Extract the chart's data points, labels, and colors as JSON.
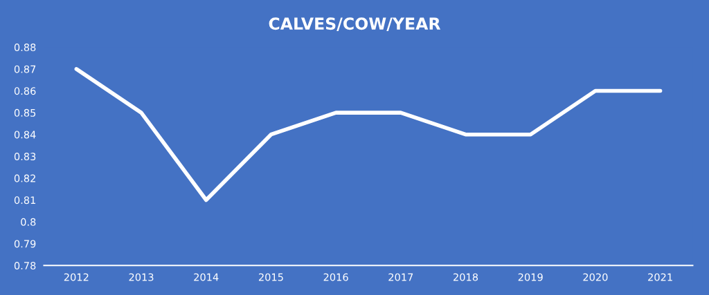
{
  "chart_data": {
    "type": "line",
    "title": "CALVES/COW/YEAR",
    "categories": [
      "2012",
      "2013",
      "2014",
      "2015",
      "2016",
      "2017",
      "2018",
      "2019",
      "2020",
      "2021"
    ],
    "series": [
      {
        "color": "#ffffff",
        "values": [
          0.87,
          0.85,
          0.81,
          0.84,
          0.85,
          0.85,
          0.84,
          0.84,
          0.86,
          0.86
        ]
      }
    ],
    "ylim": [
      0.78,
      0.88
    ],
    "yticks": [
      0.78,
      0.79,
      0.8,
      0.81,
      0.82,
      0.83,
      0.84,
      0.85,
      0.86,
      0.87,
      0.88
    ],
    "grid": false,
    "legend": false,
    "marker": "none",
    "line_style": "solid"
  }
}
